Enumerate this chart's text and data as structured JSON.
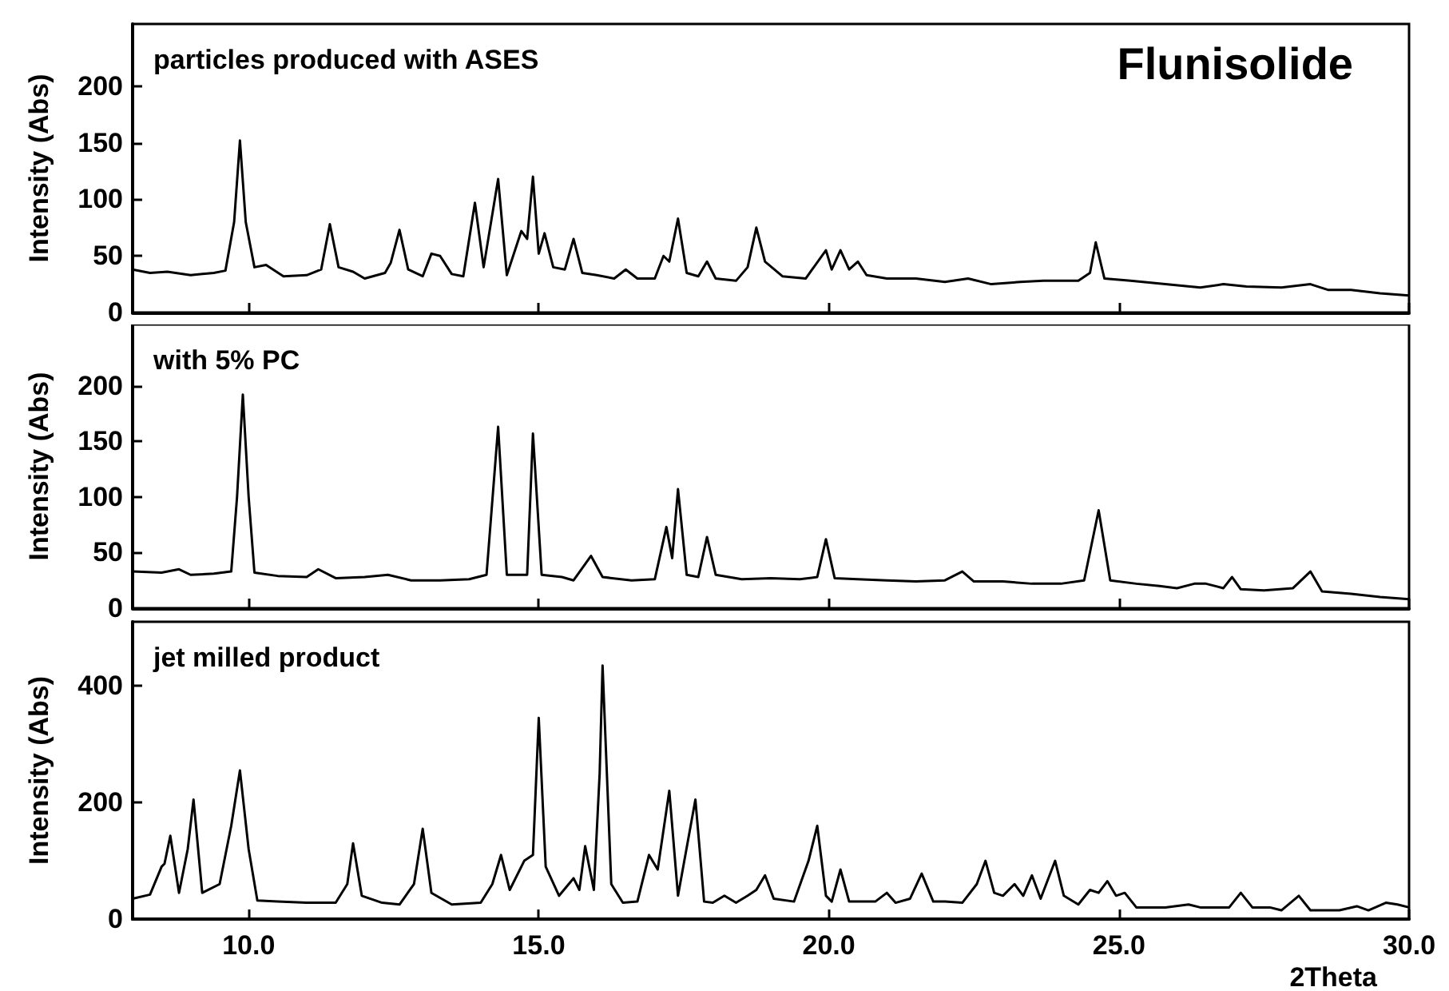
{
  "chart_data": [
    {
      "type": "line",
      "title": "Flunisolide",
      "annotations": [
        "particles produced with ASES"
      ],
      "ylabel": "Intensity (Abs)",
      "color": "#000000",
      "marker": "none",
      "tick_labels": "y",
      "xlim": [
        8,
        30
      ],
      "xticks": [
        {
          "value": 10,
          "label": null
        },
        {
          "value": 15,
          "label": null
        },
        {
          "value": 20,
          "label": null
        },
        {
          "value": 25,
          "label": null
        },
        {
          "value": 30,
          "label": null
        }
      ],
      "ylim": [
        0,
        255
      ],
      "yticks": [
        0,
        50,
        100,
        150,
        200
      ],
      "x": [
        8.0,
        8.3,
        8.6,
        9.0,
        9.4,
        9.6,
        9.75,
        9.85,
        9.95,
        10.1,
        10.3,
        10.6,
        11.0,
        11.25,
        11.4,
        11.55,
        11.8,
        12.0,
        12.35,
        12.45,
        12.6,
        12.75,
        13.0,
        13.15,
        13.3,
        13.5,
        13.7,
        13.9,
        14.05,
        14.3,
        14.45,
        14.7,
        14.8,
        14.9,
        15.0,
        15.1,
        15.25,
        15.45,
        15.6,
        15.75,
        16.0,
        16.3,
        16.5,
        16.7,
        17.0,
        17.15,
        17.25,
        17.4,
        17.55,
        17.75,
        17.9,
        18.05,
        18.4,
        18.6,
        18.75,
        18.9,
        19.2,
        19.6,
        19.95,
        20.05,
        20.2,
        20.35,
        20.5,
        20.65,
        21.0,
        21.5,
        22.0,
        22.4,
        22.8,
        23.3,
        23.7,
        24.3,
        24.5,
        24.6,
        24.75,
        25.2,
        25.8,
        26.4,
        26.8,
        27.2,
        27.8,
        28.3,
        28.6,
        29.0,
        29.5,
        30.0
      ],
      "values": [
        38,
        35,
        36,
        33,
        35,
        37,
        80,
        152,
        80,
        40,
        42,
        32,
        33,
        38,
        78,
        40,
        36,
        30,
        35,
        44,
        73,
        38,
        32,
        52,
        50,
        34,
        32,
        97,
        40,
        118,
        33,
        72,
        65,
        120,
        52,
        70,
        40,
        38,
        65,
        35,
        33,
        30,
        38,
        30,
        30,
        50,
        45,
        83,
        35,
        32,
        45,
        30,
        28,
        40,
        75,
        45,
        32,
        30,
        55,
        38,
        55,
        38,
        45,
        33,
        30,
        30,
        27,
        30,
        25,
        27,
        28,
        28,
        35,
        62,
        30,
        28,
        25,
        22,
        25,
        23,
        22,
        25,
        20,
        20,
        17,
        15
      ]
    },
    {
      "type": "line",
      "annotations": [
        "with 5% PC"
      ],
      "ylabel": "Intensity (Abs)",
      "color": "#000000",
      "marker": "none",
      "tick_labels": "y",
      "xlim": [
        8,
        30
      ],
      "xticks": [
        {
          "value": 10,
          "label": null
        },
        {
          "value": 15,
          "label": null
        },
        {
          "value": 20,
          "label": null
        },
        {
          "value": 25,
          "label": null
        },
        {
          "value": 30,
          "label": null
        }
      ],
      "ylim": [
        0,
        255
      ],
      "yticks": [
        0,
        50,
        100,
        150,
        200
      ],
      "x": [
        8.0,
        8.5,
        8.8,
        9.0,
        9.4,
        9.7,
        9.8,
        9.9,
        10.0,
        10.1,
        10.5,
        11.0,
        11.2,
        11.5,
        12.0,
        12.4,
        12.8,
        13.3,
        13.8,
        14.1,
        14.3,
        14.45,
        14.8,
        14.9,
        15.05,
        15.4,
        15.6,
        15.9,
        16.1,
        16.6,
        17.0,
        17.2,
        17.3,
        17.4,
        17.55,
        17.75,
        17.9,
        18.05,
        18.5,
        19.0,
        19.5,
        19.8,
        19.95,
        20.1,
        20.5,
        21.0,
        21.5,
        22.0,
        22.3,
        22.5,
        23.0,
        23.5,
        24.0,
        24.4,
        24.65,
        24.85,
        25.3,
        25.7,
        26.0,
        26.3,
        26.5,
        26.8,
        26.95,
        27.1,
        27.5,
        28.0,
        28.3,
        28.5,
        29.0,
        29.5,
        30.0
      ],
      "values": [
        33,
        32,
        35,
        30,
        31,
        33,
        100,
        192,
        100,
        32,
        29,
        28,
        35,
        27,
        28,
        30,
        25,
        25,
        26,
        30,
        163,
        30,
        30,
        157,
        30,
        28,
        25,
        47,
        28,
        25,
        26,
        73,
        45,
        107,
        30,
        28,
        64,
        30,
        26,
        27,
        26,
        28,
        62,
        27,
        26,
        25,
        24,
        25,
        33,
        24,
        24,
        22,
        22,
        25,
        88,
        25,
        22,
        20,
        18,
        22,
        22,
        18,
        28,
        17,
        16,
        18,
        33,
        15,
        13,
        10,
        8
      ]
    },
    {
      "type": "line",
      "annotations": [
        "jet milled product"
      ],
      "xlabel": "2Theta",
      "ylabel": "Intensity (Abs)",
      "color": "#000000",
      "marker": "none",
      "xlim": [
        8,
        30
      ],
      "xticks": [
        {
          "value": 10,
          "label": "10.0"
        },
        {
          "value": 15,
          "label": "15.0"
        },
        {
          "value": 20,
          "label": "20.0"
        },
        {
          "value": 25,
          "label": "25.0"
        },
        {
          "value": 30,
          "label": "30.0"
        }
      ],
      "ylim": [
        0,
        510
      ],
      "yticks": [
        0,
        200,
        400
      ],
      "x": [
        8.0,
        8.3,
        8.5,
        8.55,
        8.65,
        8.8,
        8.95,
        9.05,
        9.2,
        9.5,
        9.7,
        9.85,
        10.0,
        10.15,
        10.5,
        11.0,
        11.5,
        11.7,
        11.8,
        11.95,
        12.3,
        12.6,
        12.85,
        13.0,
        13.15,
        13.5,
        14.0,
        14.2,
        14.35,
        14.5,
        14.75,
        14.9,
        15.0,
        15.12,
        15.35,
        15.6,
        15.7,
        15.8,
        15.95,
        16.05,
        16.1,
        16.25,
        16.45,
        16.7,
        16.9,
        17.05,
        17.25,
        17.4,
        17.7,
        17.85,
        18.0,
        18.2,
        18.4,
        18.6,
        18.75,
        18.9,
        19.05,
        19.4,
        19.65,
        19.8,
        19.95,
        20.05,
        20.2,
        20.35,
        20.8,
        21.0,
        21.15,
        21.4,
        21.6,
        21.8,
        22.0,
        22.3,
        22.55,
        22.7,
        22.85,
        23.0,
        23.2,
        23.35,
        23.5,
        23.65,
        23.9,
        24.05,
        24.3,
        24.5,
        24.65,
        24.8,
        24.95,
        25.1,
        25.3,
        25.8,
        26.2,
        26.4,
        26.9,
        27.1,
        27.3,
        27.6,
        27.8,
        28.1,
        28.3,
        28.8,
        29.1,
        29.3,
        29.6,
        29.8,
        30.0
      ],
      "values": [
        35,
        42,
        90,
        95,
        143,
        45,
        120,
        205,
        45,
        60,
        160,
        255,
        120,
        32,
        30,
        28,
        28,
        60,
        130,
        40,
        28,
        25,
        60,
        155,
        45,
        25,
        28,
        60,
        110,
        50,
        100,
        110,
        345,
        90,
        40,
        70,
        50,
        125,
        50,
        250,
        435,
        60,
        28,
        30,
        110,
        85,
        220,
        40,
        205,
        30,
        28,
        40,
        28,
        40,
        50,
        75,
        35,
        30,
        100,
        160,
        40,
        30,
        85,
        30,
        30,
        45,
        28,
        35,
        78,
        30,
        30,
        28,
        60,
        100,
        45,
        40,
        60,
        40,
        75,
        35,
        100,
        40,
        25,
        50,
        45,
        65,
        40,
        45,
        20,
        20,
        25,
        20,
        20,
        45,
        20,
        20,
        15,
        40,
        15,
        15,
        22,
        15,
        28,
        25,
        20
      ]
    }
  ]
}
